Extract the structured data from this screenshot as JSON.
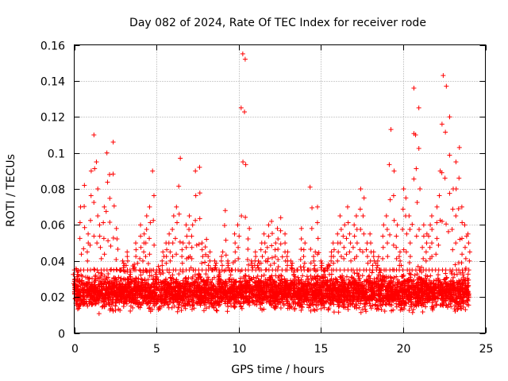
{
  "chart_data": {
    "type": "scatter",
    "title": "Day 082 of 2024, Rate Of TEC Index for receiver rode",
    "xlabel": "GPS time / hours",
    "ylabel": "ROTI / TECUs",
    "xlim": [
      0,
      25
    ],
    "ylim": [
      0,
      0.16
    ],
    "xticks": [
      0,
      5,
      10,
      15,
      20,
      25
    ],
    "xtick_labels": [
      "0",
      "5",
      "10",
      "15",
      "20",
      "25"
    ],
    "yticks": [
      0,
      0.02,
      0.04,
      0.06,
      0.08,
      0.1,
      0.12,
      0.14,
      0.16
    ],
    "ytick_labels": [
      "0",
      "0.02",
      "0.04",
      "0.06",
      "0.08",
      "0.1",
      "0.12",
      "0.14",
      "0.16"
    ],
    "grid": true,
    "marker": "+",
    "color": "#ff0000",
    "data_range_x": [
      0,
      24
    ],
    "baseline_band": [
      0.01,
      0.035
    ],
    "series": [
      {
        "name": "ROTI",
        "x": [
          0.0,
          0.2,
          0.4,
          0.6,
          0.8,
          1.0,
          1.2,
          1.4,
          1.6,
          1.8,
          2.0,
          2.2,
          2.4,
          2.6,
          2.8,
          3.0,
          3.2,
          3.4,
          3.6,
          3.8,
          4.0,
          4.2,
          4.4,
          4.6,
          4.8,
          5.0,
          5.2,
          5.4,
          5.6,
          5.8,
          6.0,
          6.2,
          6.4,
          6.6,
          6.8,
          7.0,
          7.2,
          7.4,
          7.6,
          7.8,
          8.0,
          8.2,
          8.4,
          8.6,
          8.8,
          9.0,
          9.2,
          9.4,
          9.6,
          9.8,
          10.0,
          10.2,
          10.4,
          10.6,
          10.8,
          11.0,
          11.2,
          11.4,
          11.6,
          11.8,
          12.0,
          12.2,
          12.4,
          12.6,
          12.8,
          13.0,
          13.2,
          13.4,
          13.6,
          13.8,
          14.0,
          14.2,
          14.4,
          14.6,
          14.8,
          15.0,
          15.2,
          15.4,
          15.6,
          15.8,
          16.0,
          16.2,
          16.4,
          16.6,
          16.8,
          17.0,
          17.2,
          17.4,
          17.6,
          17.8,
          18.0,
          18.2,
          18.4,
          18.6,
          18.8,
          19.0,
          19.2,
          19.4,
          19.6,
          19.8,
          20.0,
          20.2,
          20.4,
          20.6,
          20.8,
          21.0,
          21.2,
          21.4,
          21.6,
          21.8,
          22.0,
          22.2,
          22.4,
          22.6,
          22.8,
          23.0,
          23.2,
          23.4,
          23.6,
          23.8,
          24.0
        ],
        "y": [
          0.025,
          0.03,
          0.07,
          0.082,
          0.055,
          0.09,
          0.11,
          0.095,
          0.06,
          0.07,
          0.1,
          0.088,
          0.106,
          0.058,
          0.035,
          0.04,
          0.045,
          0.03,
          0.038,
          0.05,
          0.06,
          0.055,
          0.065,
          0.07,
          0.09,
          0.03,
          0.035,
          0.045,
          0.05,
          0.055,
          0.065,
          0.07,
          0.097,
          0.05,
          0.06,
          0.065,
          0.06,
          0.09,
          0.092,
          0.05,
          0.052,
          0.045,
          0.035,
          0.04,
          0.03,
          0.045,
          0.068,
          0.04,
          0.035,
          0.055,
          0.06,
          0.155,
          0.152,
          0.058,
          0.04,
          0.045,
          0.04,
          0.05,
          0.055,
          0.06,
          0.062,
          0.05,
          0.058,
          0.064,
          0.055,
          0.045,
          0.04,
          0.03,
          0.035,
          0.058,
          0.05,
          0.035,
          0.081,
          0.045,
          0.07,
          0.04,
          0.035,
          0.038,
          0.045,
          0.05,
          0.055,
          0.065,
          0.06,
          0.07,
          0.055,
          0.06,
          0.065,
          0.08,
          0.075,
          0.05,
          0.055,
          0.045,
          0.04,
          0.035,
          0.06,
          0.065,
          0.113,
          0.09,
          0.06,
          0.045,
          0.08,
          0.075,
          0.065,
          0.136,
          0.11,
          0.125,
          0.06,
          0.055,
          0.06,
          0.065,
          0.07,
          0.09,
          0.143,
          0.137,
          0.12,
          0.08,
          0.095,
          0.103,
          0.07,
          0.06,
          0.055
        ]
      }
    ]
  }
}
